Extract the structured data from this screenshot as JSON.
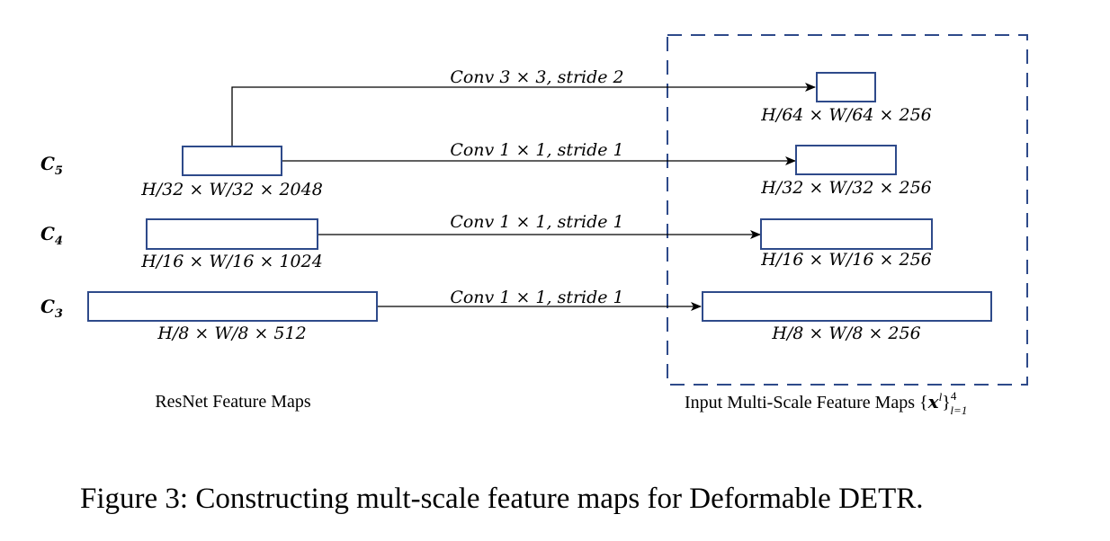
{
  "colors": {
    "box_stroke": "#2e4a8a",
    "arrow": "#000000",
    "background": "#ffffff"
  },
  "levels": {
    "c5": {
      "base": "C",
      "sub": "5"
    },
    "c4": {
      "base": "C",
      "sub": "4"
    },
    "c3": {
      "base": "C",
      "sub": "3"
    }
  },
  "resnet": {
    "c5_dims": "H/32 × W/32 × 2048",
    "c4_dims": "H/16 × W/16 × 1024",
    "c3_dims": "H/8 × W/8 × 512",
    "caption": "ResNet Feature Maps"
  },
  "operations": {
    "conv3": "Conv 3 × 3, stride 2",
    "conv1_c5": "Conv 1 × 1, stride 1",
    "conv1_c4": "Conv 1 × 1, stride 1",
    "conv1_c3": "Conv 1 × 1, stride 1"
  },
  "multiscale": {
    "dims_64": "H/64 × W/64 × 256",
    "dims_32": "H/32 × W/32 × 256",
    "dims_16": "H/16 × W/16 × 256",
    "dims_8": "H/8 × W/8 × 256",
    "caption_prefix": "Input Multi-Scale Feature Maps {",
    "caption_var": "x",
    "caption_var_sup": "l",
    "caption_suffix": "}",
    "caption_sup": "4",
    "caption_sub": "l=1"
  },
  "figure_caption": "Figure 3: Constructing mult-scale feature maps for Deformable DETR."
}
